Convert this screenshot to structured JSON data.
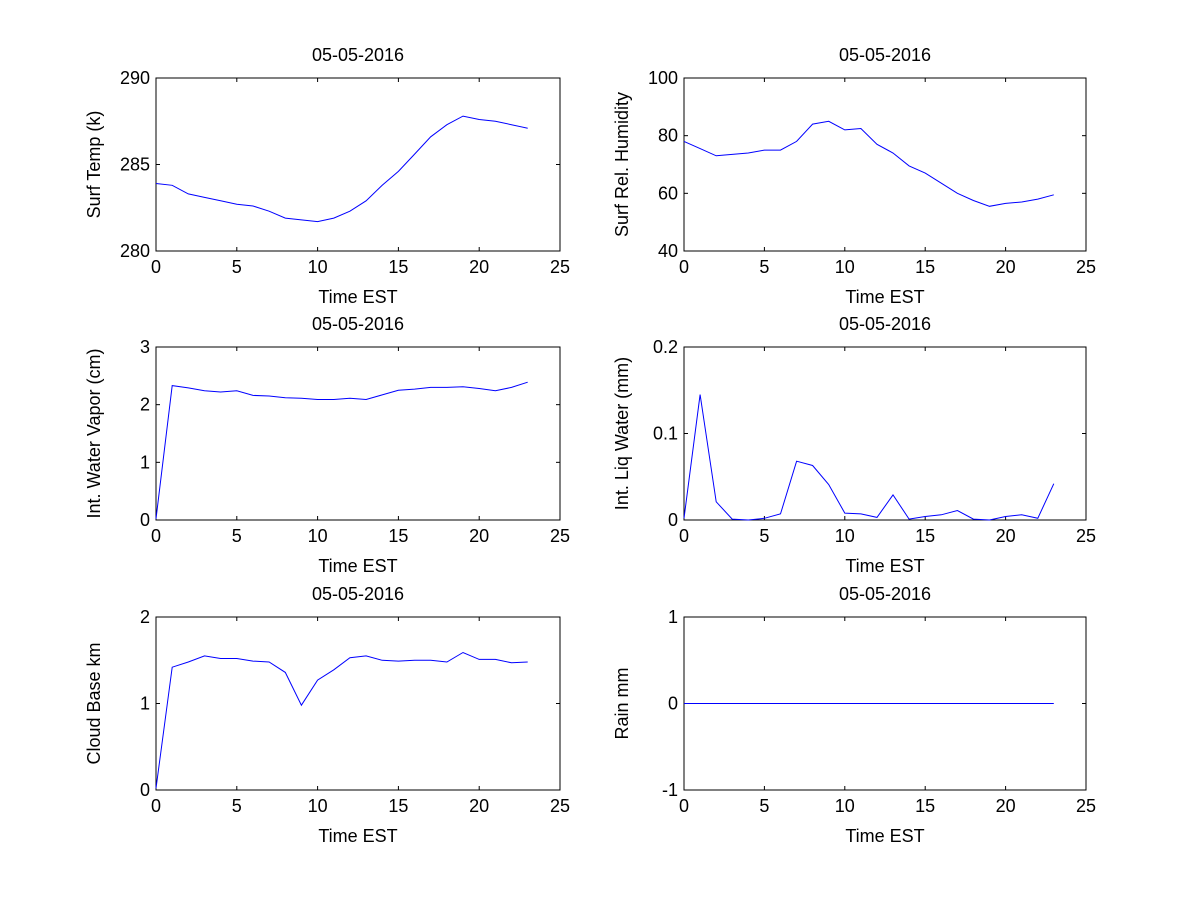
{
  "chart_data": [
    {
      "type": "line",
      "title": "05-05-2016",
      "xlabel": "Time EST",
      "ylabel": "Surf Temp (k)",
      "xlim": [
        0,
        25
      ],
      "ylim": [
        280,
        290
      ],
      "xticks": [
        "0",
        "5",
        "10",
        "15",
        "20",
        "25"
      ],
      "yticks": [
        "280",
        "285",
        "290"
      ],
      "ytick_values": [
        280,
        285,
        290
      ],
      "series": [
        {
          "color": "#0000ff",
          "x": [
            0,
            1,
            2,
            3,
            4,
            5,
            6,
            7,
            8,
            9,
            10,
            11,
            12,
            13,
            14,
            15,
            16,
            17,
            18,
            19,
            20,
            21,
            22,
            23
          ],
          "y": [
            283.9,
            283.8,
            283.3,
            283.1,
            282.9,
            282.7,
            282.6,
            282.3,
            281.9,
            281.8,
            281.7,
            281.9,
            282.3,
            282.9,
            283.8,
            284.6,
            285.6,
            286.6,
            287.3,
            287.8,
            287.6,
            287.5,
            287.3,
            287.1
          ]
        }
      ]
    },
    {
      "type": "line",
      "title": "05-05-2016",
      "xlabel": "Time EST",
      "ylabel": "Surf Rel. Humidity",
      "xlim": [
        0,
        25
      ],
      "ylim": [
        40,
        100
      ],
      "xticks": [
        "0",
        "5",
        "10",
        "15",
        "20",
        "25"
      ],
      "yticks": [
        "40",
        "60",
        "80",
        "100"
      ],
      "ytick_values": [
        40,
        60,
        80,
        100
      ],
      "series": [
        {
          "color": "#0000ff",
          "x": [
            0,
            1,
            2,
            3,
            4,
            5,
            6,
            7,
            8,
            9,
            10,
            11,
            12,
            13,
            14,
            15,
            16,
            17,
            18,
            19,
            20,
            21,
            22,
            23
          ],
          "y": [
            78,
            75.5,
            73,
            73.5,
            74,
            75,
            75,
            78,
            84,
            85,
            82,
            82.5,
            77,
            74,
            69.5,
            67,
            63.5,
            60,
            57.5,
            55.5,
            56.5,
            57,
            58,
            59.5
          ]
        }
      ]
    },
    {
      "type": "line",
      "title": "05-05-2016",
      "xlabel": "Time EST",
      "ylabel": "Int. Water Vapor (cm)",
      "xlim": [
        0,
        25
      ],
      "ylim": [
        0,
        3
      ],
      "xticks": [
        "0",
        "5",
        "10",
        "15",
        "20",
        "25"
      ],
      "yticks": [
        "0",
        "1",
        "2",
        "3"
      ],
      "ytick_values": [
        0,
        1,
        2,
        3
      ],
      "series": [
        {
          "color": "#0000ff",
          "x": [
            0,
            1,
            2,
            3,
            4,
            5,
            6,
            7,
            8,
            9,
            10,
            11,
            12,
            13,
            14,
            15,
            16,
            17,
            18,
            19,
            20,
            21,
            22,
            23
          ],
          "y": [
            0.02,
            2.33,
            2.29,
            2.24,
            2.22,
            2.24,
            2.16,
            2.15,
            2.12,
            2.11,
            2.09,
            2.09,
            2.11,
            2.09,
            2.17,
            2.25,
            2.27,
            2.3,
            2.3,
            2.31,
            2.28,
            2.24,
            2.3,
            2.39
          ]
        }
      ]
    },
    {
      "type": "line",
      "title": "05-05-2016",
      "xlabel": "Time EST",
      "ylabel": "Int. Liq Water (mm)",
      "xlim": [
        0,
        25
      ],
      "ylim": [
        0,
        0.2
      ],
      "xticks": [
        "0",
        "5",
        "10",
        "15",
        "20",
        "25"
      ],
      "yticks": [
        "0",
        "0.1",
        "0.2"
      ],
      "ytick_values": [
        0,
        0.1,
        0.2
      ],
      "series": [
        {
          "color": "#0000ff",
          "x": [
            0,
            1,
            2,
            3,
            4,
            5,
            6,
            7,
            8,
            9,
            10,
            11,
            12,
            13,
            14,
            15,
            16,
            17,
            18,
            19,
            20,
            21,
            22,
            23
          ],
          "y": [
            0.002,
            0.145,
            0.021,
            0.001,
            0,
            0.002,
            0.007,
            0.068,
            0.063,
            0.041,
            0.008,
            0.007,
            0.003,
            0.029,
            0.001,
            0.004,
            0.006,
            0.011,
            0.001,
            0,
            0.004,
            0.006,
            0.002,
            0.042
          ]
        }
      ]
    },
    {
      "type": "line",
      "title": "05-05-2016",
      "xlabel": "Time EST",
      "ylabel": "Cloud Base km",
      "xlim": [
        0,
        25
      ],
      "ylim": [
        0,
        2
      ],
      "xticks": [
        "0",
        "5",
        "10",
        "15",
        "20",
        "25"
      ],
      "yticks": [
        "0",
        "1",
        "2"
      ],
      "ytick_values": [
        0,
        1,
        2
      ],
      "series": [
        {
          "color": "#0000ff",
          "x": [
            0,
            1,
            2,
            3,
            4,
            5,
            6,
            7,
            8,
            9,
            10,
            11,
            12,
            13,
            14,
            15,
            16,
            17,
            18,
            19,
            20,
            21,
            22,
            23
          ],
          "y": [
            0.02,
            1.42,
            1.48,
            1.55,
            1.52,
            1.52,
            1.49,
            1.48,
            1.36,
            0.98,
            1.27,
            1.39,
            1.53,
            1.55,
            1.5,
            1.49,
            1.5,
            1.5,
            1.48,
            1.59,
            1.51,
            1.51,
            1.47,
            1.48
          ]
        }
      ]
    },
    {
      "type": "line",
      "title": "05-05-2016",
      "xlabel": "Time EST",
      "ylabel": "Rain mm",
      "xlim": [
        0,
        25
      ],
      "ylim": [
        -1,
        1
      ],
      "xticks": [
        "0",
        "5",
        "10",
        "15",
        "20",
        "25"
      ],
      "yticks": [
        "-1",
        "0",
        "1"
      ],
      "ytick_values": [
        -1,
        0,
        1
      ],
      "series": [
        {
          "color": "#0000ff",
          "x": [
            0,
            1,
            2,
            3,
            4,
            5,
            6,
            7,
            8,
            9,
            10,
            11,
            12,
            13,
            14,
            15,
            16,
            17,
            18,
            19,
            20,
            21,
            22,
            23
          ],
          "y": [
            0,
            0,
            0,
            0,
            0,
            0,
            0,
            0,
            0,
            0,
            0,
            0,
            0,
            0,
            0,
            0,
            0,
            0,
            0,
            0,
            0,
            0,
            0,
            0
          ]
        }
      ]
    }
  ]
}
